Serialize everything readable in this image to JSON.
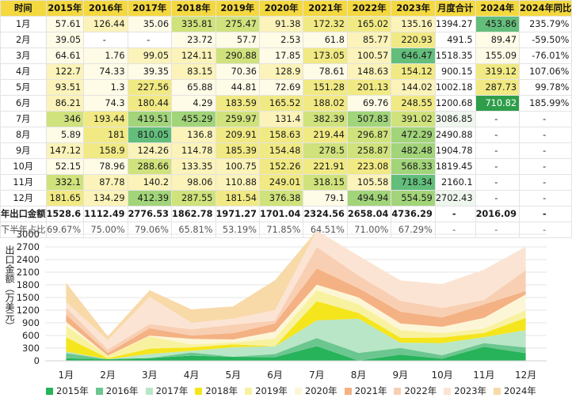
{
  "table": {
    "header": [
      "时间",
      "2015年",
      "2016年",
      "2017年",
      "2018年",
      "2019年",
      "2020年",
      "2021年",
      "2022年",
      "2023年",
      "月度合计",
      "2024年",
      "2024年同比"
    ],
    "rows": [
      {
        "label": "1月",
        "cells": [
          "57.61",
          "126.44",
          "35.06",
          "335.81",
          "275.47",
          "91.38",
          "172.32",
          "165.02",
          "135.16",
          "1394.27",
          "453.86",
          "235.79%"
        ]
      },
      {
        "label": "2月",
        "cells": [
          "39.05",
          "-",
          "-",
          "23.72",
          "57.7",
          "2.53",
          "61.8",
          "85.77",
          "220.93",
          "491.5",
          "89.47",
          "-59.50%"
        ]
      },
      {
        "label": "3月",
        "cells": [
          "64.61",
          "1.76",
          "99.05",
          "124.11",
          "290.88",
          "17.85",
          "173.05",
          "100.57",
          "646.47",
          "1518.35",
          "155.09",
          "-76.01%"
        ]
      },
      {
        "label": "4月",
        "cells": [
          "122.7",
          "74.33",
          "39.35",
          "83.15",
          "70.36",
          "128.9",
          "78.61",
          "148.63",
          "154.12",
          "900.15",
          "319.12",
          "107.06%"
        ]
      },
      {
        "label": "5月",
        "cells": [
          "93.51",
          "1.3",
          "227.56",
          "65.88",
          "44.81",
          "72.69",
          "151.28",
          "201.13",
          "144.02",
          "1002.18",
          "287.73",
          "99.78%"
        ]
      },
      {
        "label": "6月",
        "cells": [
          "86.21",
          "74.3",
          "180.44",
          "4.29",
          "183.59",
          "165.52",
          "188.02",
          "69.76",
          "248.55",
          "1200.68",
          "710.82",
          "185.99%"
        ]
      },
      {
        "label": "7月",
        "cells": [
          "346",
          "193.44",
          "419.51",
          "455.29",
          "259.97",
          "131.4",
          "382.39",
          "507.83",
          "391.02",
          "3086.85",
          "-",
          "-"
        ]
      },
      {
        "label": "8月",
        "cells": [
          "5.89",
          "181",
          "810.05",
          "136.8",
          "209.91",
          "158.63",
          "219.44",
          "296.87",
          "472.29",
          "2490.88",
          "-",
          "-"
        ]
      },
      {
        "label": "9月",
        "cells": [
          "147.12",
          "158.9",
          "124.26",
          "114.78",
          "185.39",
          "154.48",
          "278.5",
          "258.87",
          "482.48",
          "1904.78",
          "-",
          "-"
        ]
      },
      {
        "label": "10月",
        "cells": [
          "52.15",
          "78.96",
          "288.66",
          "133.35",
          "100.75",
          "152.26",
          "221.91",
          "223.08",
          "568.33",
          "1819.45",
          "-",
          "-"
        ]
      },
      {
        "label": "11月",
        "cells": [
          "332.1",
          "87.78",
          "140.2",
          "98.06",
          "110.88",
          "249.01",
          "318.15",
          "105.58",
          "718.34",
          "2160.1",
          "-",
          "-"
        ]
      },
      {
        "label": "12月",
        "cells": [
          "181.65",
          "134.29",
          "412.39",
          "287.55",
          "181.54",
          "376.38",
          "79.1",
          "494.94",
          "554.59",
          "2702.43",
          "-",
          "-"
        ]
      }
    ],
    "sum_row": {
      "label": "年出口金额",
      "cells": [
        "1528.6",
        "1112.49",
        "2776.53",
        "1862.78",
        "1971.27",
        "1701.04",
        "2324.56",
        "2658.04",
        "4736.29",
        "-",
        "2016.09",
        "-"
      ]
    },
    "ratio_row": {
      "label": "下半年占比",
      "cells": [
        "69.67%",
        "75.00%",
        "79.06%",
        "65.81%",
        "53.19%",
        "71.85%",
        "64.51%",
        "71.00%",
        "67.29%",
        "-",
        "-",
        "-"
      ]
    }
  },
  "chart_data": {
    "type": "area",
    "stacked": true,
    "ylabel": "出口金额（万美元）",
    "ylim": [
      0,
      3000
    ],
    "yticks": [
      0,
      300,
      600,
      900,
      1200,
      1500,
      1800,
      2100,
      2400,
      2700,
      3000
    ],
    "categories": [
      "1月",
      "2月",
      "3月",
      "4月",
      "5月",
      "6月",
      "7月",
      "8月",
      "9月",
      "10月",
      "11月",
      "12月"
    ],
    "series": [
      {
        "name": "2015年",
        "color": "#26b35a",
        "values": [
          57.61,
          39.05,
          64.61,
          122.7,
          93.51,
          86.21,
          346,
          5.89,
          147.12,
          52.15,
          332.1,
          181.65
        ]
      },
      {
        "name": "2016年",
        "color": "#6cc68f",
        "values": [
          126.44,
          0,
          1.76,
          74.33,
          1.3,
          74.3,
          193.44,
          181,
          158.9,
          78.96,
          87.78,
          134.29
        ]
      },
      {
        "name": "2017年",
        "color": "#b9e6c6",
        "values": [
          35.06,
          0,
          99.05,
          39.35,
          227.56,
          180.44,
          419.51,
          810.05,
          124.26,
          288.66,
          140.2,
          412.39
        ]
      },
      {
        "name": "2018年",
        "color": "#f5e51c",
        "values": [
          335.81,
          23.72,
          124.11,
          83.15,
          65.88,
          4.29,
          455.29,
          136.8,
          114.78,
          133.35,
          98.06,
          287.55
        ]
      },
      {
        "name": "2019年",
        "color": "#f8f2a0",
        "values": [
          275.47,
          57.7,
          290.88,
          70.36,
          44.81,
          183.59,
          259.97,
          209.91,
          185.39,
          100.75,
          110.88,
          181.54
        ]
      },
      {
        "name": "2020年",
        "color": "#fdf6d6",
        "values": [
          91.38,
          2.53,
          17.85,
          128.9,
          72.69,
          165.52,
          131.4,
          158.63,
          154.48,
          152.26,
          249.01,
          376.38
        ]
      },
      {
        "name": "2021年",
        "color": "#f4b183",
        "values": [
          172.32,
          61.8,
          173.05,
          78.61,
          151.28,
          188.02,
          382.39,
          219.44,
          278.5,
          221.91,
          318.15,
          79.1
        ]
      },
      {
        "name": "2022年",
        "color": "#f8cfb3",
        "values": [
          165.02,
          85.77,
          100.57,
          148.63,
          201.13,
          69.76,
          507.83,
          296.87,
          258.87,
          223.08,
          105.58,
          494.94
        ]
      },
      {
        "name": "2023年",
        "color": "#fbe4d3",
        "values": [
          135.16,
          220.93,
          646.47,
          154.12,
          144.02,
          248.55,
          391.02,
          472.29,
          482.48,
          568.33,
          718.34,
          554.59
        ]
      },
      {
        "name": "2024年",
        "color": "#f8d9a8",
        "values": [
          453.86,
          89.47,
          155.09,
          319.12,
          287.73,
          710.82,
          0,
          0,
          0,
          0,
          0,
          0
        ]
      }
    ]
  }
}
